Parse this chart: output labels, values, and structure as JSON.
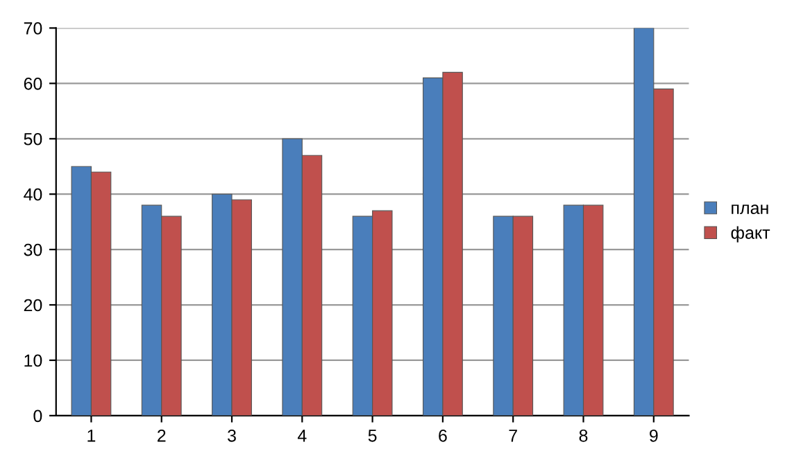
{
  "chart_data": {
    "type": "bar",
    "categories": [
      "1",
      "2",
      "3",
      "4",
      "5",
      "6",
      "7",
      "8",
      "9"
    ],
    "series": [
      {
        "name": "план",
        "color": "#4a7ebb",
        "values": [
          45,
          38,
          40,
          50,
          36,
          61,
          36,
          38,
          70
        ]
      },
      {
        "name": "факт",
        "color": "#c0504d",
        "values": [
          44,
          36,
          39,
          47,
          37,
          62,
          36,
          38,
          59
        ]
      }
    ],
    "ylim": [
      0,
      70
    ],
    "yticks": [
      0,
      10,
      20,
      30,
      40,
      50,
      60,
      70
    ],
    "grid": "y",
    "legend": "right"
  }
}
